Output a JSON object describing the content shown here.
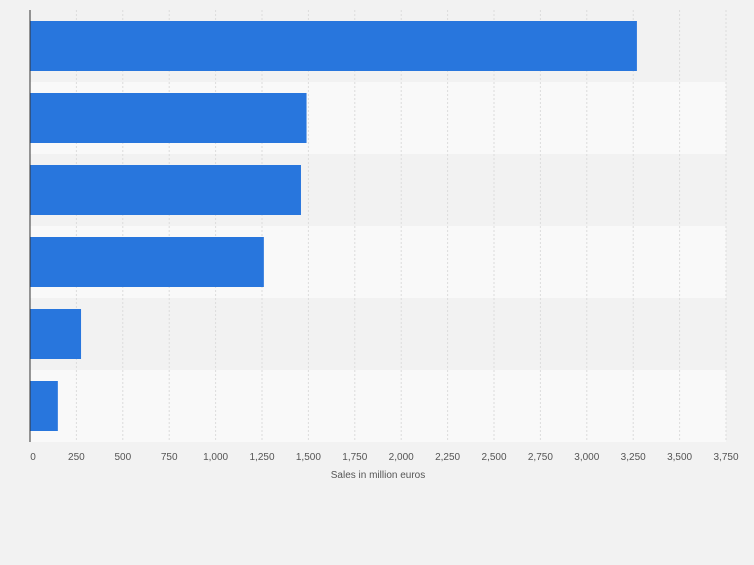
{
  "colors": {
    "bar": "#2876dd",
    "band_light": "#f9f9f9",
    "band_dark": "#f2f2f2",
    "grid": "#dcdcdc",
    "axis": "#333333",
    "tick_text": "#555555",
    "page_bg": "#f2f2f2"
  },
  "chart_data": {
    "type": "bar",
    "orientation": "horizontal",
    "categories": [
      "",
      "",
      "",
      "",
      "",
      ""
    ],
    "values": [
      3270,
      1490,
      1460,
      1260,
      275,
      150
    ],
    "xlabel": "Sales in million euros",
    "ylabel": "",
    "xlim": [
      0,
      3750
    ],
    "xticks": [
      0,
      250,
      500,
      750,
      1000,
      1250,
      1500,
      1750,
      2000,
      2250,
      2500,
      2750,
      3000,
      3250,
      3500,
      3750
    ],
    "xtick_labels": [
      "0",
      "250",
      "500",
      "750",
      "1,000",
      "1,250",
      "1,500",
      "1,750",
      "2,000",
      "2,250",
      "2,500",
      "2,750",
      "3,000",
      "3,250",
      "3,500",
      "3,750"
    ],
    "grid": true,
    "legend": "none"
  }
}
